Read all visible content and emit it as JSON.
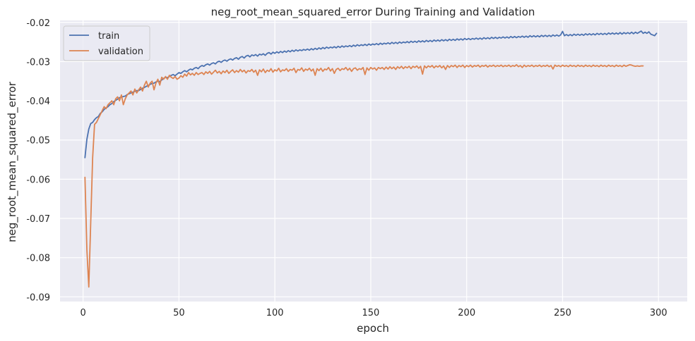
{
  "chart_data": {
    "type": "line",
    "title": "neg_root_mean_squared_error During Training and Validation",
    "xlabel": "epoch",
    "ylabel": "neg_root_mean_squared_error",
    "xlim": [
      -12,
      315
    ],
    "ylim": [
      -0.0912,
      -0.0195
    ],
    "x_ticks": [
      0,
      50,
      100,
      150,
      200,
      250,
      300
    ],
    "y_ticks": [
      -0.02,
      -0.03,
      -0.04,
      -0.05,
      -0.06,
      -0.07,
      -0.08,
      -0.09
    ],
    "y_tick_labels": [
      "-0.02",
      "-0.03",
      "-0.04",
      "-0.05",
      "-0.06",
      "-0.07",
      "-0.08",
      "-0.09"
    ],
    "grid": true,
    "legend_position": "top-left",
    "colors": {
      "train": "#4c72b0",
      "validation": "#dd8452",
      "background": "#eaeaf2",
      "grid": "#ffffff"
    },
    "x_start": 1,
    "series": [
      {
        "name": "train",
        "values": [
          -0.0545,
          -0.0498,
          -0.0472,
          -0.0458,
          -0.0455,
          -0.0448,
          -0.0443,
          -0.044,
          -0.0432,
          -0.0428,
          -0.0422,
          -0.0418,
          -0.0415,
          -0.041,
          -0.0407,
          -0.0402,
          -0.0399,
          -0.0396,
          -0.0392,
          -0.0391,
          -0.0389,
          -0.0388,
          -0.0384,
          -0.0382,
          -0.038,
          -0.0378,
          -0.0376,
          -0.0374,
          -0.0374,
          -0.0371,
          -0.0368,
          -0.0366,
          -0.0363,
          -0.0361,
          -0.0358,
          -0.0356,
          -0.0355,
          -0.0352,
          -0.035,
          -0.0351,
          -0.0347,
          -0.0343,
          -0.034,
          -0.0341,
          -0.0338,
          -0.0335,
          -0.0333,
          -0.0336,
          -0.0332,
          -0.0328,
          -0.033,
          -0.0326,
          -0.0323,
          -0.0326,
          -0.0322,
          -0.0319,
          -0.0321,
          -0.0317,
          -0.0315,
          -0.0318,
          -0.0313,
          -0.031,
          -0.0312,
          -0.0308,
          -0.0306,
          -0.0309,
          -0.0305,
          -0.0303,
          -0.0306,
          -0.0301,
          -0.0299,
          -0.0302,
          -0.0298,
          -0.0296,
          -0.0299,
          -0.0295,
          -0.0293,
          -0.0296,
          -0.0292,
          -0.029,
          -0.0294,
          -0.0289,
          -0.0287,
          -0.0291,
          -0.0286,
          -0.0284,
          -0.0288,
          -0.0283,
          -0.0285,
          -0.0282,
          -0.0286,
          -0.0281,
          -0.0283,
          -0.028,
          -0.0284,
          -0.0279,
          -0.0277,
          -0.0281,
          -0.0276,
          -0.0279,
          -0.0275,
          -0.0278,
          -0.0274,
          -0.0277,
          -0.0273,
          -0.0276,
          -0.0272,
          -0.0275,
          -0.0271,
          -0.0274,
          -0.027,
          -0.0273,
          -0.027,
          -0.0272,
          -0.0269,
          -0.0271,
          -0.0268,
          -0.0271,
          -0.0267,
          -0.027,
          -0.0266,
          -0.0269,
          -0.0265,
          -0.0268,
          -0.0264,
          -0.0267,
          -0.0263,
          -0.0266,
          -0.0263,
          -0.0265,
          -0.0262,
          -0.0265,
          -0.0261,
          -0.0264,
          -0.026,
          -0.0263,
          -0.026,
          -0.0262,
          -0.0259,
          -0.0262,
          -0.0258,
          -0.0261,
          -0.0257,
          -0.026,
          -0.0257,
          -0.0259,
          -0.0256,
          -0.0259,
          -0.0255,
          -0.0258,
          -0.0255,
          -0.0257,
          -0.0254,
          -0.0257,
          -0.0253,
          -0.0256,
          -0.0253,
          -0.0255,
          -0.0252,
          -0.0255,
          -0.0251,
          -0.0254,
          -0.0251,
          -0.0254,
          -0.025,
          -0.0253,
          -0.025,
          -0.0252,
          -0.0249,
          -0.0252,
          -0.0248,
          -0.0251,
          -0.0248,
          -0.0251,
          -0.0247,
          -0.025,
          -0.0247,
          -0.025,
          -0.0246,
          -0.0249,
          -0.0246,
          -0.0249,
          -0.0245,
          -0.0248,
          -0.0245,
          -0.0248,
          -0.0244,
          -0.0247,
          -0.0244,
          -0.0247,
          -0.0243,
          -0.0246,
          -0.0243,
          -0.0246,
          -0.0242,
          -0.0245,
          -0.0242,
          -0.0245,
          -0.0241,
          -0.0244,
          -0.0241,
          -0.0244,
          -0.0241,
          -0.0243,
          -0.024,
          -0.0243,
          -0.024,
          -0.0243,
          -0.0239,
          -0.0242,
          -0.0239,
          -0.0242,
          -0.0238,
          -0.0241,
          -0.0238,
          -0.0241,
          -0.0238,
          -0.024,
          -0.0237,
          -0.024,
          -0.0237,
          -0.024,
          -0.0236,
          -0.0239,
          -0.0236,
          -0.0239,
          -0.0236,
          -0.0238,
          -0.0235,
          -0.0238,
          -0.0235,
          -0.0238,
          -0.0234,
          -0.0237,
          -0.0234,
          -0.0237,
          -0.0234,
          -0.0237,
          -0.0233,
          -0.0236,
          -0.0233,
          -0.0236,
          -0.0233,
          -0.0236,
          -0.0232,
          -0.0235,
          -0.0232,
          -0.0235,
          -0.0232,
          -0.0223,
          -0.0234,
          -0.0231,
          -0.0234,
          -0.0231,
          -0.0234,
          -0.023,
          -0.0233,
          -0.023,
          -0.0233,
          -0.023,
          -0.0233,
          -0.0229,
          -0.0232,
          -0.0229,
          -0.0232,
          -0.0229,
          -0.0232,
          -0.0228,
          -0.0231,
          -0.0228,
          -0.0231,
          -0.0228,
          -0.0231,
          -0.0227,
          -0.023,
          -0.0227,
          -0.023,
          -0.0227,
          -0.023,
          -0.0226,
          -0.023,
          -0.0226,
          -0.0229,
          -0.0226,
          -0.0229,
          -0.0225,
          -0.0229,
          -0.0225,
          -0.0228,
          -0.0225,
          -0.0222,
          -0.0228,
          -0.0225,
          -0.0228,
          -0.0224,
          -0.023,
          -0.0232,
          -0.0234,
          -0.0228
        ]
      },
      {
        "name": "validation",
        "values": [
          -0.0595,
          -0.078,
          -0.0875,
          -0.071,
          -0.0545,
          -0.046,
          -0.0455,
          -0.0445,
          -0.0435,
          -0.0425,
          -0.0415,
          -0.042,
          -0.041,
          -0.0405,
          -0.04,
          -0.041,
          -0.0395,
          -0.039,
          -0.04,
          -0.0385,
          -0.041,
          -0.0395,
          -0.0385,
          -0.038,
          -0.0375,
          -0.0385,
          -0.037,
          -0.038,
          -0.0372,
          -0.0365,
          -0.0375,
          -0.036,
          -0.035,
          -0.0365,
          -0.0355,
          -0.035,
          -0.0372,
          -0.0355,
          -0.0345,
          -0.036,
          -0.034,
          -0.0345,
          -0.0338,
          -0.0345,
          -0.0335,
          -0.034,
          -0.0343,
          -0.0338,
          -0.0345,
          -0.0342,
          -0.0336,
          -0.034,
          -0.0332,
          -0.0337,
          -0.0328,
          -0.0334,
          -0.033,
          -0.0335,
          -0.0328,
          -0.0333,
          -0.033,
          -0.0328,
          -0.0333,
          -0.0326,
          -0.033,
          -0.0325,
          -0.0332,
          -0.0327,
          -0.0322,
          -0.0329,
          -0.0325,
          -0.0331,
          -0.0324,
          -0.0328,
          -0.0322,
          -0.033,
          -0.0325,
          -0.0321,
          -0.0328,
          -0.0323,
          -0.0327,
          -0.032,
          -0.0326,
          -0.0322,
          -0.0329,
          -0.0323,
          -0.0325,
          -0.032,
          -0.0327,
          -0.0322,
          -0.0335,
          -0.0321,
          -0.0326,
          -0.0319,
          -0.0328,
          -0.0322,
          -0.0325,
          -0.0318,
          -0.0327,
          -0.0321,
          -0.0324,
          -0.0317,
          -0.0326,
          -0.0321,
          -0.0323,
          -0.0318,
          -0.0325,
          -0.032,
          -0.0322,
          -0.0317,
          -0.0328,
          -0.032,
          -0.0322,
          -0.0316,
          -0.0325,
          -0.0319,
          -0.0322,
          -0.0317,
          -0.0324,
          -0.0319,
          -0.0335,
          -0.0318,
          -0.0323,
          -0.0317,
          -0.0325,
          -0.0319,
          -0.0321,
          -0.0315,
          -0.0324,
          -0.0318,
          -0.033,
          -0.032,
          -0.0317,
          -0.0323,
          -0.0318,
          -0.032,
          -0.0315,
          -0.0322,
          -0.0317,
          -0.0325,
          -0.0318,
          -0.0316,
          -0.0322,
          -0.0318,
          -0.032,
          -0.0315,
          -0.0333,
          -0.0316,
          -0.0322,
          -0.0315,
          -0.0319,
          -0.0316,
          -0.0322,
          -0.0315,
          -0.0318,
          -0.0315,
          -0.032,
          -0.0314,
          -0.0319,
          -0.0313,
          -0.0318,
          -0.0314,
          -0.032,
          -0.0313,
          -0.0317,
          -0.0312,
          -0.0318,
          -0.0313,
          -0.0316,
          -0.0312,
          -0.0318,
          -0.0312,
          -0.0315,
          -0.0311,
          -0.0317,
          -0.0312,
          -0.0332,
          -0.0311,
          -0.0316,
          -0.0311,
          -0.0314,
          -0.031,
          -0.0316,
          -0.0311,
          -0.0314,
          -0.031,
          -0.0316,
          -0.0311,
          -0.032,
          -0.031,
          -0.0315,
          -0.031,
          -0.0313,
          -0.0309,
          -0.0315,
          -0.031,
          -0.0313,
          -0.0309,
          -0.0315,
          -0.031,
          -0.0313,
          -0.0309,
          -0.0314,
          -0.031,
          -0.0312,
          -0.0309,
          -0.0314,
          -0.031,
          -0.0312,
          -0.0309,
          -0.0314,
          -0.031,
          -0.0312,
          -0.0309,
          -0.0313,
          -0.031,
          -0.0312,
          -0.0309,
          -0.0313,
          -0.031,
          -0.0312,
          -0.0309,
          -0.0313,
          -0.031,
          -0.0312,
          -0.0308,
          -0.0313,
          -0.031,
          -0.0315,
          -0.0309,
          -0.0313,
          -0.031,
          -0.0312,
          -0.0309,
          -0.0313,
          -0.031,
          -0.0312,
          -0.0309,
          -0.0313,
          -0.031,
          -0.0312,
          -0.0309,
          -0.0313,
          -0.031,
          -0.0319,
          -0.0309,
          -0.0312,
          -0.031,
          -0.0313,
          -0.0309,
          -0.0312,
          -0.031,
          -0.0313,
          -0.0309,
          -0.0312,
          -0.031,
          -0.0313,
          -0.0309,
          -0.0312,
          -0.031,
          -0.0313,
          -0.0309,
          -0.0312,
          -0.031,
          -0.0313,
          -0.0309,
          -0.0312,
          -0.031,
          -0.0313,
          -0.0309,
          -0.0312,
          -0.031,
          -0.0313,
          -0.0309,
          -0.0312,
          -0.031,
          -0.0313,
          -0.0309,
          -0.0312,
          -0.031,
          -0.0313,
          -0.0309,
          -0.0312,
          -0.031,
          -0.0308,
          -0.0309,
          -0.0311,
          -0.0312,
          -0.0311,
          -0.0312,
          -0.0311,
          -0.0311
        ]
      }
    ]
  }
}
